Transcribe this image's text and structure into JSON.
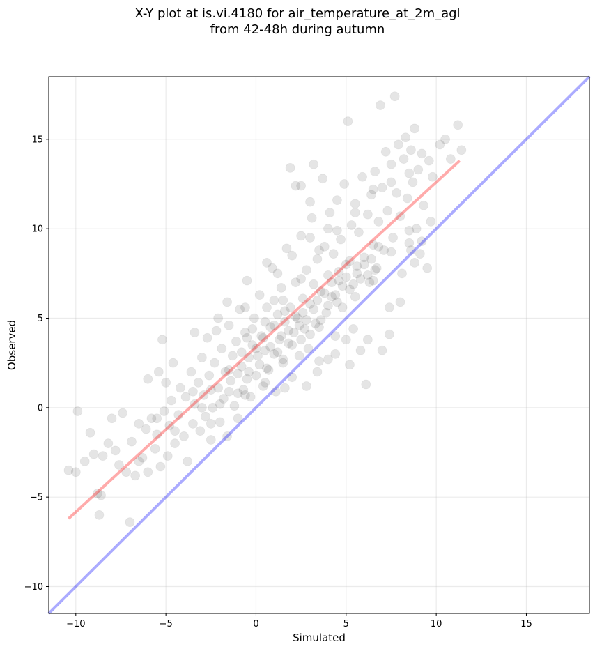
{
  "chart_data": {
    "type": "scatter",
    "title_line1": "X-Y plot at is.vi.4180 for air_temperature_at_2m_agl",
    "title_line2": "from 42-48h during autumn",
    "xlabel": "Simulated",
    "ylabel": "Observed",
    "xlim": [
      -11.5,
      18.5
    ],
    "ylim": [
      -11.5,
      18.5
    ],
    "xticks": [
      -10,
      -5,
      0,
      5,
      10,
      15
    ],
    "yticks": [
      -10,
      -5,
      0,
      5,
      10,
      15
    ],
    "xtick_labels": [
      "−10",
      "−5",
      "0",
      "5",
      "10",
      "15"
    ],
    "ytick_labels": [
      "−10",
      "−5",
      "0",
      "5",
      "10",
      "15"
    ],
    "grid": true,
    "point_color": "#000000",
    "point_alpha": 0.1,
    "identity_line": {
      "color": "#0000ff",
      "alpha": 0.33,
      "x": [
        -11.5,
        18.5
      ],
      "y": [
        -11.5,
        18.5
      ]
    },
    "fit_line": {
      "color": "#ff0000",
      "alpha": 0.33,
      "x": [
        -10.4,
        11.3
      ],
      "y": [
        -6.2,
        13.8
      ]
    },
    "points": [
      [
        -10.4,
        -3.5
      ],
      [
        -10.0,
        -3.6
      ],
      [
        -9.9,
        -0.2
      ],
      [
        -9.5,
        -3.0
      ],
      [
        -9.2,
        -1.4
      ],
      [
        -9.0,
        -2.6
      ],
      [
        -8.8,
        -4.8
      ],
      [
        -8.7,
        -6.0
      ],
      [
        -8.6,
        -4.9
      ],
      [
        -8.5,
        -2.7
      ],
      [
        -8.2,
        -2.0
      ],
      [
        -8.0,
        -0.6
      ],
      [
        -7.8,
        -2.4
      ],
      [
        -7.6,
        -3.2
      ],
      [
        -7.4,
        -0.3
      ],
      [
        -7.2,
        -3.6
      ],
      [
        -7.0,
        -6.4
      ],
      [
        -6.9,
        -1.9
      ],
      [
        -6.7,
        -3.8
      ],
      [
        -6.5,
        -0.9
      ],
      [
        -6.3,
        -2.8
      ],
      [
        -6.1,
        -1.2
      ],
      [
        -6.0,
        -3.6
      ],
      [
        -5.8,
        -0.6
      ],
      [
        -5.6,
        -2.3
      ],
      [
        -5.5,
        -1.5
      ],
      [
        -5.3,
        -3.3
      ],
      [
        -5.1,
        -0.2
      ],
      [
        -5.0,
        1.4
      ],
      [
        -4.9,
        -2.7
      ],
      [
        -4.8,
        -1.0
      ],
      [
        -4.7,
        0.4
      ],
      [
        -4.5,
        -2.0
      ],
      [
        -4.3,
        -0.4
      ],
      [
        -4.2,
        1.1
      ],
      [
        -4.0,
        -1.6
      ],
      [
        -3.9,
        0.6
      ],
      [
        -3.8,
        -3.0
      ],
      [
        -3.6,
        2.0
      ],
      [
        -3.5,
        -0.9
      ],
      [
        -3.4,
        0.2
      ],
      [
        -3.2,
        1.4
      ],
      [
        -3.1,
        -1.3
      ],
      [
        -3.0,
        2.8
      ],
      [
        -2.9,
        0.7
      ],
      [
        -2.8,
        -0.5
      ],
      [
        -2.7,
        3.9
      ],
      [
        -2.6,
        1.8
      ],
      [
        -2.5,
        -1.8
      ],
      [
        -2.4,
        0.0
      ],
      [
        -2.3,
        2.5
      ],
      [
        -2.2,
        4.3
      ],
      [
        -2.1,
        1.1
      ],
      [
        -2.0,
        -0.8
      ],
      [
        -1.9,
        3.3
      ],
      [
        -1.8,
        0.5
      ],
      [
        -1.7,
        2.0
      ],
      [
        -1.6,
        -1.6
      ],
      [
        -1.5,
        4.6
      ],
      [
        -1.4,
        1.5
      ],
      [
        -1.3,
        2.9
      ],
      [
        -1.2,
        0.1
      ],
      [
        -1.1,
        3.7
      ],
      [
        -1.0,
        -0.6
      ],
      [
        -0.9,
        5.5
      ],
      [
        -0.8,
        2.3
      ],
      [
        -0.7,
        1.0
      ],
      [
        -0.6,
        4.2
      ],
      [
        -0.5,
        7.1
      ],
      [
        -0.4,
        2.8
      ],
      [
        -0.3,
        0.6
      ],
      [
        -0.2,
        3.5
      ],
      [
        -0.1,
        5.0
      ],
      [
        0.0,
        1.8
      ],
      [
        0.1,
        2.9
      ],
      [
        0.2,
        6.3
      ],
      [
        0.3,
        4.0
      ],
      [
        0.4,
        1.2
      ],
      [
        0.5,
        3.2
      ],
      [
        0.6,
        5.6
      ],
      [
        0.7,
        2.1
      ],
      [
        0.8,
        4.5
      ],
      [
        0.9,
        7.8
      ],
      [
        1.0,
        3.0
      ],
      [
        1.1,
        0.9
      ],
      [
        1.2,
        5.2
      ],
      [
        1.3,
        3.8
      ],
      [
        1.4,
        6.7
      ],
      [
        1.5,
        2.5
      ],
      [
        1.6,
        4.8
      ],
      [
        1.7,
        8.9
      ],
      [
        1.8,
        3.6
      ],
      [
        1.9,
        5.6
      ],
      [
        2.0,
        1.7
      ],
      [
        2.1,
        4.2
      ],
      [
        2.2,
        7.0
      ],
      [
        2.3,
        5.0
      ],
      [
        2.4,
        2.9
      ],
      [
        2.5,
        9.6
      ],
      [
        2.6,
        6.1
      ],
      [
        2.7,
        4.4
      ],
      [
        2.8,
        7.7
      ],
      [
        2.9,
        3.3
      ],
      [
        3.0,
        5.8
      ],
      [
        3.1,
        10.6
      ],
      [
        3.2,
        6.9
      ],
      [
        3.3,
        4.7
      ],
      [
        3.4,
        8.3
      ],
      [
        3.5,
        2.6
      ],
      [
        3.6,
        6.5
      ],
      [
        3.7,
        12.8
      ],
      [
        3.8,
        9.0
      ],
      [
        3.9,
        5.3
      ],
      [
        4.0,
        7.4
      ],
      [
        4.1,
        10.9
      ],
      [
        4.2,
        6.2
      ],
      [
        4.3,
        8.6
      ],
      [
        4.4,
        4.0
      ],
      [
        4.5,
        11.6
      ],
      [
        4.6,
        7.1
      ],
      [
        4.7,
        9.4
      ],
      [
        4.8,
        5.6
      ],
      [
        4.9,
        12.5
      ],
      [
        5.0,
        8.0
      ],
      [
        5.1,
        16.0
      ],
      [
        5.2,
        6.6
      ],
      [
        5.3,
        10.2
      ],
      [
        5.4,
        4.4
      ],
      [
        5.5,
        11.4
      ],
      [
        5.6,
        7.5
      ],
      [
        5.7,
        9.8
      ],
      [
        5.8,
        3.2
      ],
      [
        5.9,
        12.9
      ],
      [
        6.0,
        8.4
      ],
      [
        6.1,
        1.3
      ],
      [
        6.2,
        10.8
      ],
      [
        6.3,
        7.0
      ],
      [
        6.4,
        11.9
      ],
      [
        6.5,
        9.1
      ],
      [
        6.6,
        13.2
      ],
      [
        6.7,
        7.8
      ],
      [
        6.8,
        10.4
      ],
      [
        6.9,
        16.9
      ],
      [
        7.0,
        12.3
      ],
      [
        7.1,
        8.8
      ],
      [
        7.2,
        14.3
      ],
      [
        7.3,
        11.0
      ],
      [
        7.4,
        5.6
      ],
      [
        7.5,
        13.6
      ],
      [
        7.6,
        9.5
      ],
      [
        7.7,
        17.4
      ],
      [
        7.8,
        12.0
      ],
      [
        7.9,
        14.7
      ],
      [
        8.0,
        10.7
      ],
      [
        8.1,
        7.5
      ],
      [
        8.2,
        13.9
      ],
      [
        8.3,
        15.1
      ],
      [
        8.4,
        11.7
      ],
      [
        8.5,
        9.2
      ],
      [
        8.6,
        14.4
      ],
      [
        8.7,
        12.6
      ],
      [
        8.8,
        15.6
      ],
      [
        8.9,
        10.0
      ],
      [
        9.0,
        13.3
      ],
      [
        9.1,
        8.6
      ],
      [
        9.2,
        14.2
      ],
      [
        9.3,
        11.3
      ],
      [
        9.5,
        7.8
      ],
      [
        9.6,
        13.8
      ],
      [
        9.8,
        12.9
      ],
      [
        10.2,
        14.7
      ],
      [
        10.5,
        15.0
      ],
      [
        10.8,
        13.9
      ],
      [
        11.2,
        15.8
      ],
      [
        11.4,
        14.4
      ],
      [
        -1.0,
        1.9
      ],
      [
        -0.8,
        3.1
      ],
      [
        -0.6,
        0.7
      ],
      [
        -0.4,
        2.0
      ],
      [
        -0.2,
        4.4
      ],
      [
        0.0,
        3.3
      ],
      [
        0.2,
        2.4
      ],
      [
        0.4,
        3.9
      ],
      [
        0.6,
        2.2
      ],
      [
        0.8,
        3.4
      ],
      [
        1.0,
        4.6
      ],
      [
        1.2,
        3.1
      ],
      [
        1.4,
        4.0
      ],
      [
        1.6,
        5.4
      ],
      [
        1.8,
        4.3
      ],
      [
        2.0,
        3.5
      ],
      [
        2.2,
        5.1
      ],
      [
        2.4,
        4.6
      ],
      [
        2.6,
        5.3
      ],
      [
        2.8,
        4.9
      ],
      [
        3.0,
        4.1
      ],
      [
        3.2,
        5.5
      ],
      [
        3.4,
        6.0
      ],
      [
        3.6,
        4.9
      ],
      [
        3.8,
        6.4
      ],
      [
        4.0,
        5.7
      ],
      [
        4.2,
        7.0
      ],
      [
        4.4,
        6.3
      ],
      [
        4.6,
        7.6
      ],
      [
        4.8,
        6.8
      ],
      [
        5.0,
        7.3
      ],
      [
        5.2,
        8.2
      ],
      [
        5.4,
        6.9
      ],
      [
        5.6,
        7.9
      ],
      [
        5.8,
        7.2
      ],
      [
        6.0,
        8.0
      ],
      [
        6.2,
        7.4
      ],
      [
        6.4,
        8.3
      ],
      [
        6.6,
        7.7
      ],
      [
        6.8,
        9.0
      ],
      [
        -3.0,
        0.0
      ],
      [
        -2.5,
        1.0
      ],
      [
        -2.0,
        0.2
      ],
      [
        -1.5,
        2.1
      ],
      [
        -1.0,
        0.8
      ],
      [
        -0.5,
        1.6
      ],
      [
        0.5,
        1.4
      ],
      [
        1.5,
        2.7
      ],
      [
        2.5,
        3.8
      ],
      [
        3.5,
        4.5
      ],
      [
        4.5,
        5.9
      ],
      [
        5.5,
        6.2
      ],
      [
        6.5,
        7.1
      ],
      [
        7.5,
        8.7
      ],
      [
        8.5,
        9.9
      ],
      [
        -6.5,
        -3.0
      ],
      [
        -5.5,
        -0.6
      ],
      [
        -4.5,
        -1.3
      ],
      [
        -3.5,
        0.9
      ],
      [
        -2.5,
        -0.9
      ],
      [
        -1.5,
        0.9
      ],
      [
        -0.5,
        3.9
      ],
      [
        0.5,
        4.8
      ],
      [
        1.5,
        6.0
      ],
      [
        2.5,
        7.2
      ],
      [
        3.5,
        8.8
      ],
      [
        4.5,
        9.9
      ],
      [
        5.5,
        10.9
      ],
      [
        6.5,
        12.2
      ],
      [
        7.5,
        12.6
      ],
      [
        8.5,
        13.1
      ],
      [
        1.0,
        6.0
      ],
      [
        2.0,
        8.5
      ],
      [
        3.0,
        9.5
      ],
      [
        4.0,
        10.0
      ],
      [
        2.2,
        12.4
      ],
      [
        2.5,
        12.4
      ],
      [
        3.0,
        11.5
      ],
      [
        3.2,
        13.6
      ],
      [
        1.9,
        13.4
      ],
      [
        0.6,
        8.1
      ],
      [
        1.2,
        7.5
      ],
      [
        -1.6,
        5.9
      ],
      [
        -0.6,
        5.6
      ],
      [
        -2.1,
        5.0
      ],
      [
        -3.4,
        4.2
      ],
      [
        -5.2,
        3.8
      ],
      [
        -4.6,
        2.5
      ],
      [
        -6.0,
        1.6
      ],
      [
        -5.4,
        2.0
      ],
      [
        4.4,
        3.0
      ],
      [
        5.2,
        2.4
      ],
      [
        6.2,
        3.8
      ],
      [
        7.0,
        3.2
      ],
      [
        7.4,
        4.1
      ],
      [
        8.0,
        5.9
      ],
      [
        8.6,
        8.8
      ],
      [
        8.8,
        8.1
      ],
      [
        9.2,
        9.3
      ],
      [
        9.7,
        10.4
      ],
      [
        2.8,
        1.2
      ],
      [
        3.4,
        2.0
      ],
      [
        4.0,
        2.7
      ],
      [
        5.0,
        3.8
      ],
      [
        1.6,
        1.1
      ]
    ]
  }
}
